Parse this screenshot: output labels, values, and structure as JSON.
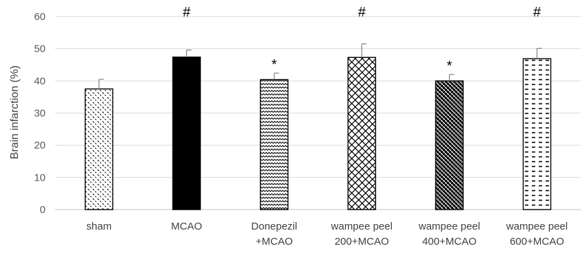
{
  "chart_data": {
    "type": "bar",
    "categories": [
      [
        "sham"
      ],
      [
        "MCAO"
      ],
      [
        "Donepezil",
        "+MCAO"
      ],
      [
        "wampee peel",
        "200+MCAO"
      ],
      [
        "wampee peel",
        "400+MCAO"
      ],
      [
        "wampee peel",
        "600+MCAO"
      ]
    ],
    "values": [
      37.5,
      47.4,
      40.4,
      47.3,
      40.0,
      46.9
    ],
    "errors": [
      3.0,
      2.2,
      2.0,
      4.2,
      2.0,
      3.2
    ],
    "annotations": [
      "",
      "#",
      "*",
      "#",
      "*",
      "#"
    ],
    "patterns": [
      "dots",
      "solid",
      "wave",
      "diamond",
      "checker",
      "dashes"
    ],
    "ylabel": "Brain infarction (%)",
    "ylim": [
      0,
      60
    ],
    "yticks": [
      0,
      10,
      20,
      30,
      40,
      50,
      60
    ],
    "grid": true,
    "colors": {
      "bar_fill": "#000000",
      "grid": "#d9d9d9",
      "error_bar": "#7f7f7f"
    }
  }
}
